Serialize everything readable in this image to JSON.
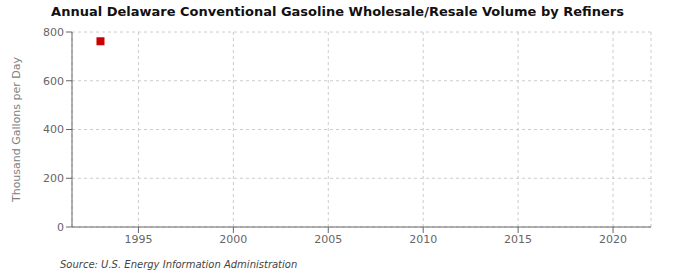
{
  "chart_data": {
    "type": "scatter",
    "title": "Annual Delaware Conventional Gasoline Wholesale/Resale Volume by Refiners",
    "ylabel": "Thousand Gallons per Day",
    "x": [
      1993
    ],
    "values": [
      762
    ],
    "color": "#cc0000",
    "marker": "square",
    "xlim": [
      1991.5,
      2022
    ],
    "ylim": [
      0,
      800
    ],
    "xticks": [
      1995,
      2000,
      2005,
      2010,
      2015,
      2020
    ],
    "yticks": [
      0,
      200,
      400,
      600,
      800
    ],
    "grid": true,
    "annotations": [
      "Source: U.S. Energy Information Administration"
    ]
  }
}
